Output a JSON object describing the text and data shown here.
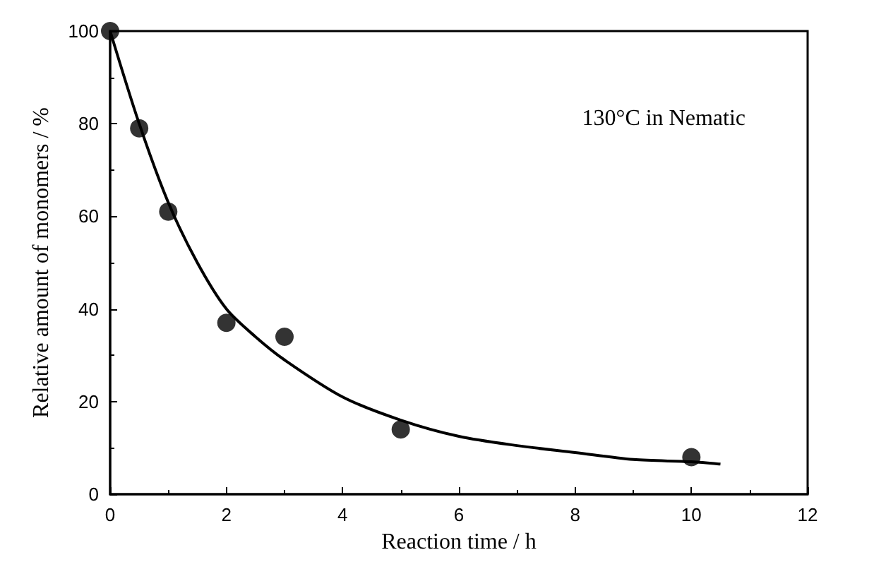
{
  "chart_data": {
    "type": "scatter",
    "xlabel": "Reaction time / h",
    "ylabel": "Relative amount of monomers / %",
    "annotations": [
      "130°C in Nematic"
    ],
    "xlim": [
      0,
      12
    ],
    "xticks": [
      0,
      2,
      4,
      6,
      8,
      10,
      12
    ],
    "ylim": [
      0,
      100
    ],
    "yticks": [
      0,
      20,
      40,
      60,
      80,
      100
    ],
    "grid": false,
    "marker": "circle",
    "series": [
      {
        "color": "#000000",
        "x": [
          0,
          0.5,
          1,
          2,
          3,
          5,
          10
        ],
        "values": [
          100,
          79,
          61,
          37,
          34,
          14,
          8
        ]
      },
      {
        "type": "line",
        "color": "#000000",
        "marker": "none",
        "line_style": "solid",
        "x": [
          0,
          0.5,
          1,
          1.5,
          2,
          2.5,
          3,
          4,
          5,
          6,
          7,
          8,
          9,
          10,
          10.5
        ],
        "values": [
          100,
          80,
          63,
          50,
          40,
          34,
          29,
          21,
          16,
          12.5,
          10.5,
          9,
          7.5,
          7,
          6.5
        ]
      }
    ]
  }
}
